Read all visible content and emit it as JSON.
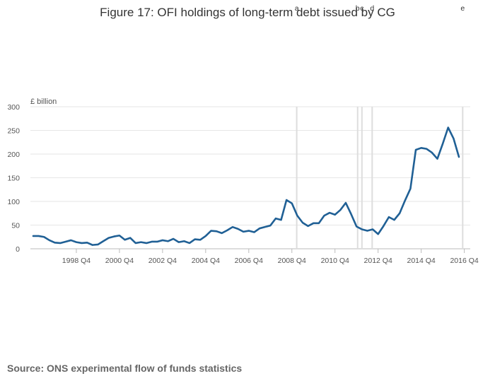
{
  "chart_data": {
    "type": "line",
    "title": "Figure 17: OFI holdings of long-term debt issued by CG",
    "ylabel": "£ billion",
    "xlabel": "",
    "ylim": [
      0,
      300
    ],
    "yticks": [
      0,
      50,
      100,
      150,
      200,
      250,
      300
    ],
    "xtick_labels": [
      "1998 Q4",
      "2000 Q4",
      "2002 Q4",
      "2004 Q4",
      "2006 Q4",
      "2008 Q4",
      "2010 Q4",
      "2012 Q4",
      "2014 Q4",
      "2016 Q4"
    ],
    "xtick_index": [
      8,
      16,
      24,
      32,
      40,
      48,
      56,
      64,
      72,
      80
    ],
    "grid": true,
    "line_color": "#206095",
    "event_line_color": "#dddddd",
    "events": [
      {
        "label": "a",
        "index": 48.9
      },
      {
        "label": "b",
        "index": 60.2
      },
      {
        "label": "c",
        "index": 61.0
      },
      {
        "label": "d",
        "index": 62.9
      },
      {
        "label": "e",
        "index": 79.7
      }
    ],
    "series": [
      {
        "values": [
          27,
          27,
          25,
          18,
          13,
          12,
          15,
          18,
          14,
          12,
          13,
          8,
          9,
          16,
          23,
          26,
          28,
          19,
          23,
          12,
          14,
          12,
          15,
          15,
          18,
          16,
          21,
          14,
          16,
          12,
          20,
          19,
          27,
          38,
          37,
          33,
          39,
          46,
          42,
          36,
          38,
          35,
          43,
          46,
          49,
          64,
          61,
          103,
          96,
          70,
          55,
          48,
          54,
          54,
          70,
          76,
          72,
          82,
          97,
          73,
          47,
          41,
          38,
          41,
          31,
          48,
          67,
          61,
          75,
          102,
          127,
          209,
          213,
          211,
          203,
          190,
          222,
          256,
          233,
          194
        ]
      }
    ]
  },
  "source": "Source: ONS experimental flow of funds statistics"
}
